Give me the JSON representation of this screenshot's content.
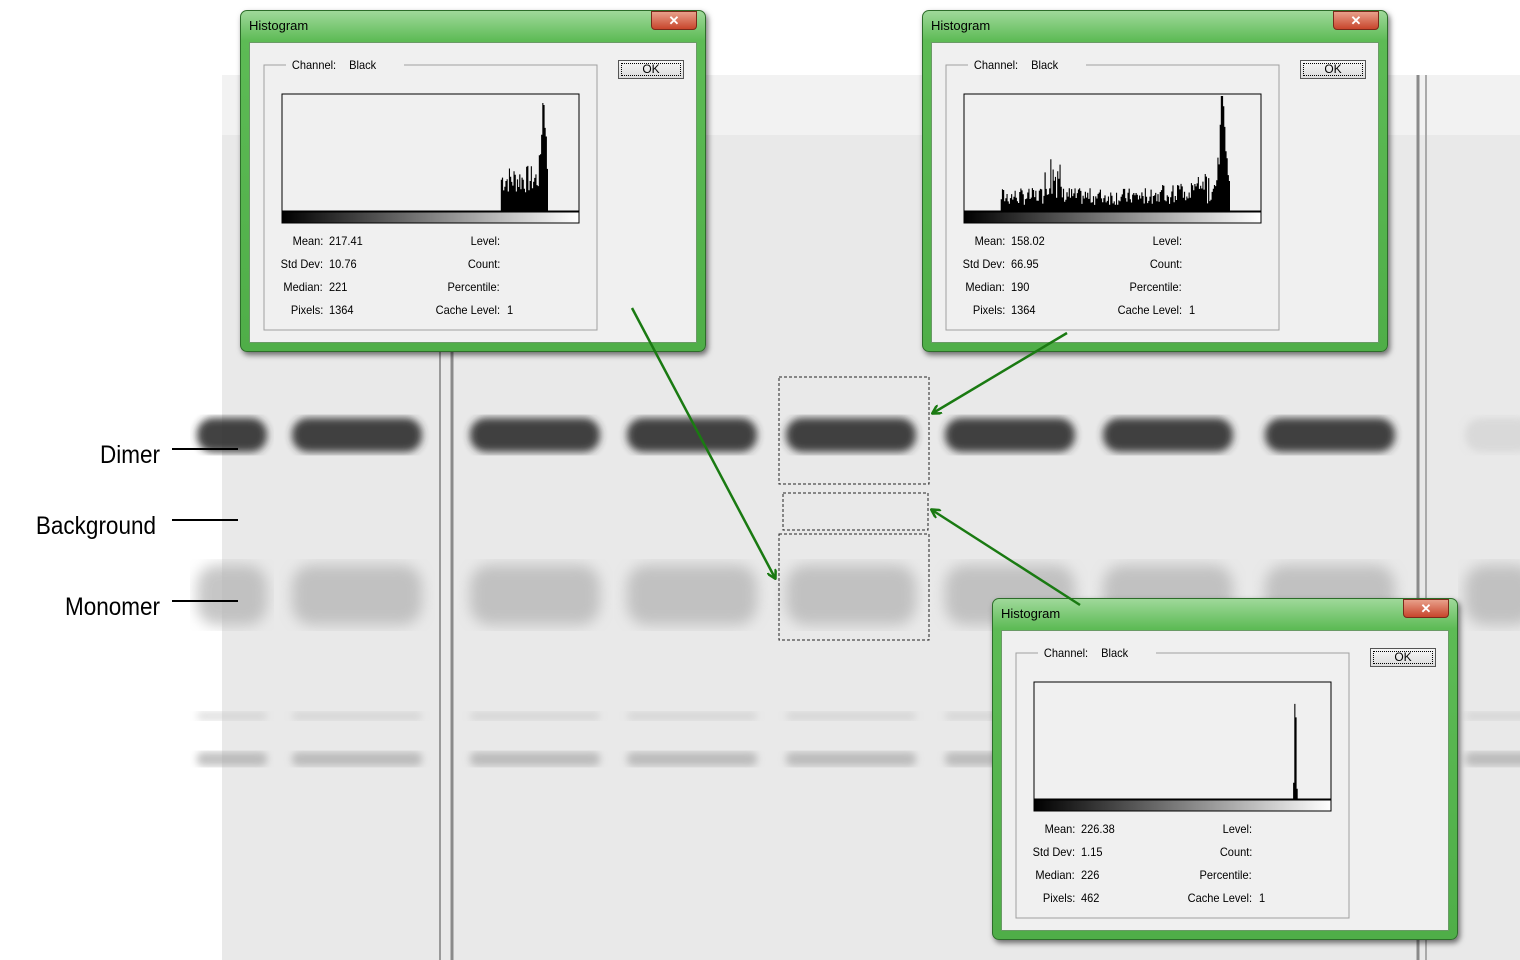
{
  "labels": [
    "Dimer",
    "Background",
    "Monomer"
  ],
  "dialogs": [
    {
      "title": "Histogram",
      "channel_label": "Channel:",
      "channel": "Black",
      "button": "OK",
      "stats": [
        {
          "label": "Mean:",
          "value": 217.41
        },
        {
          "label": "Std Dev:",
          "value": 10.76
        },
        {
          "label": "Median:",
          "value": 221
        },
        {
          "label": "Pixels:",
          "value": 1364
        }
      ],
      "info": [
        {
          "label": "Level:"
        },
        {
          "label": "Count:"
        },
        {
          "label": "Percentile:"
        },
        {
          "label": "Cache Level:",
          "value": 1
        }
      ]
    },
    {
      "title": "Histogram",
      "channel_label": "Channel:",
      "channel": "Black",
      "button": "OK",
      "stats": [
        {
          "label": "Mean:",
          "value": 158.02
        },
        {
          "label": "Std Dev:",
          "value": 66.95
        },
        {
          "label": "Median:",
          "value": 190
        },
        {
          "label": "Pixels:",
          "value": 1364
        }
      ],
      "info": [
        {
          "label": "Level:"
        },
        {
          "label": "Count:"
        },
        {
          "label": "Percentile:"
        },
        {
          "label": "Cache Level:",
          "value": 1
        }
      ]
    },
    {
      "title": "Histogram",
      "channel_label": "Channel:",
      "channel": "Black",
      "button": "OK",
      "stats": [
        {
          "label": "Mean:",
          "value": 226.38
        },
        {
          "label": "Std Dev:",
          "value": 1.15
        },
        {
          "label": "Median:",
          "value": 226
        },
        {
          "label": "Pixels:",
          "value": 462
        }
      ],
      "info": [
        {
          "label": "Level:"
        },
        {
          "label": "Count:"
        },
        {
          "label": "Percentile:"
        },
        {
          "label": "Cache Level:",
          "value": 1
        }
      ]
    }
  ]
}
